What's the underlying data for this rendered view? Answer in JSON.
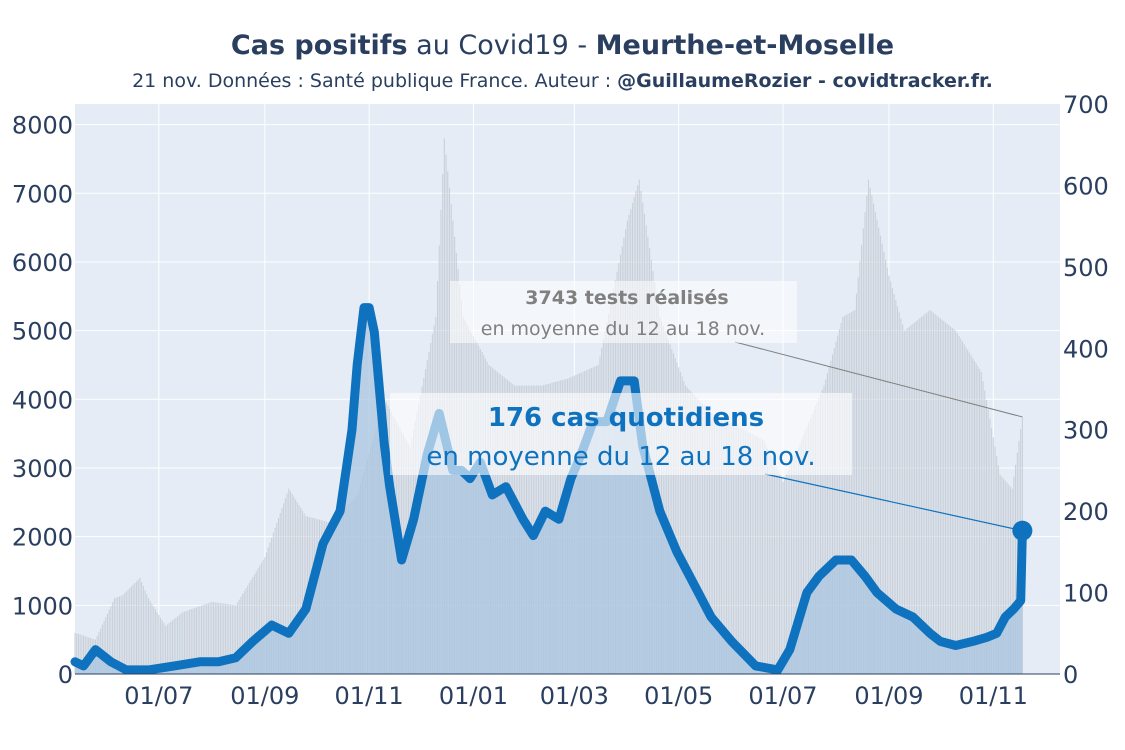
{
  "title": {
    "part1": "Cas positifs",
    "part2": " au Covid19 - ",
    "part3": "Meurthe-et-Moselle"
  },
  "subtitle": {
    "part1": "21 nov. Données : Santé publique France. Auteur : ",
    "part2": "@GuillaumeRozier - covidtracker.fr."
  },
  "colors": {
    "cases_line": "#0f72bf",
    "cases_area": "#a9c6e0",
    "tests_bars": "#c4cbd4",
    "plot_bg": "#e5ecf6",
    "gridline": "#ffffff",
    "text": "#2a3f5f",
    "annotation_tests": "#808080"
  },
  "annotations": {
    "tests_value": "3743 tests réalisés",
    "tests_period": "en moyenne du 12 au 18 nov.",
    "cases_value": "176 cas quotidiens",
    "cases_period": "en moyenne du 12 au 18 nov."
  },
  "chart_data": {
    "type": "line",
    "title": "Cas positifs au Covid19 - Meurthe-et-Moselle",
    "x_tick_labels": [
      "01/07",
      "01/09",
      "01/11",
      "01/01",
      "01/03",
      "01/05",
      "01/07",
      "01/09",
      "01/11"
    ],
    "x_tick_dates": [
      "2020-07-01",
      "2020-09-01",
      "2020-11-01",
      "2021-01-01",
      "2021-03-01",
      "2021-05-01",
      "2021-07-01",
      "2021-09-01",
      "2021-11-01"
    ],
    "xlim": [
      "2020-05-13",
      "2021-12-10"
    ],
    "y_left": {
      "ticks": [
        0,
        1000,
        2000,
        3000,
        4000,
        5000,
        6000,
        7000,
        8000
      ],
      "range": [
        0,
        8300
      ]
    },
    "y_right": {
      "ticks": [
        0,
        100,
        200,
        300,
        400,
        500,
        600,
        700
      ],
      "range": [
        0,
        700
      ]
    },
    "grid": true,
    "series": [
      {
        "name": "Tests",
        "axis": "left",
        "style": "bars",
        "x": [
          "2020-05-13",
          "2020-05-25",
          "2020-06-05",
          "2020-06-10",
          "2020-06-20",
          "2020-06-25",
          "2020-07-05",
          "2020-07-15",
          "2020-08-01",
          "2020-08-15",
          "2020-09-01",
          "2020-09-15",
          "2020-09-25",
          "2020-10-10",
          "2020-10-25",
          "2020-11-10",
          "2020-11-25",
          "2020-12-10",
          "2020-12-15",
          "2020-12-20",
          "2020-12-26",
          "2021-01-10",
          "2021-01-25",
          "2021-02-10",
          "2021-02-25",
          "2021-03-15",
          "2021-04-01",
          "2021-04-08",
          "2021-04-20",
          "2021-05-05",
          "2021-05-20",
          "2021-06-05",
          "2021-06-20",
          "2021-07-01",
          "2021-07-10",
          "2021-07-25",
          "2021-08-05",
          "2021-08-12",
          "2021-08-20",
          "2021-09-01",
          "2021-09-10",
          "2021-09-25",
          "2021-10-10",
          "2021-10-25",
          "2021-11-05",
          "2021-11-12",
          "2021-11-18"
        ],
        "values": [
          600,
          500,
          1100,
          1150,
          1400,
          1100,
          700,
          900,
          1050,
          1000,
          1700,
          2700,
          2300,
          2200,
          2600,
          4000,
          3300,
          5200,
          7800,
          6600,
          5200,
          4500,
          4200,
          4200,
          4300,
          4500,
          6600,
          7200,
          5200,
          4200,
          3800,
          3600,
          3400,
          2800,
          3300,
          4200,
          5200,
          5300,
          7200,
          5800,
          5000,
          5300,
          5000,
          4400,
          2900,
          2700,
          3743
        ]
      },
      {
        "name": "Cas",
        "axis": "right",
        "style": "line",
        "x": [
          "2020-05-13",
          "2020-05-18",
          "2020-05-25",
          "2020-06-03",
          "2020-06-12",
          "2020-06-25",
          "2020-07-10",
          "2020-07-25",
          "2020-08-05",
          "2020-08-15",
          "2020-08-25",
          "2020-09-05",
          "2020-09-15",
          "2020-09-25",
          "2020-10-05",
          "2020-10-15",
          "2020-10-22",
          "2020-10-25",
          "2020-10-29",
          "2020-11-01",
          "2020-11-04",
          "2020-11-07",
          "2020-11-10",
          "2020-11-13",
          "2020-11-20",
          "2020-11-27",
          "2020-12-05",
          "2020-12-12",
          "2020-12-20",
          "2020-12-25",
          "2020-12-30",
          "2021-01-05",
          "2021-01-12",
          "2021-01-20",
          "2021-01-30",
          "2021-02-05",
          "2021-02-12",
          "2021-02-20",
          "2021-02-27",
          "2021-03-05",
          "2021-03-12",
          "2021-03-20",
          "2021-03-28",
          "2021-04-05",
          "2021-04-10",
          "2021-04-20",
          "2021-04-30",
          "2021-05-10",
          "2021-05-20",
          "2021-06-01",
          "2021-06-15",
          "2021-06-28",
          "2021-07-05",
          "2021-07-15",
          "2021-07-22",
          "2021-08-01",
          "2021-08-10",
          "2021-08-18",
          "2021-08-25",
          "2021-09-05",
          "2021-09-15",
          "2021-09-25",
          "2021-10-01",
          "2021-10-10",
          "2021-10-20",
          "2021-10-28",
          "2021-11-03",
          "2021-11-08",
          "2021-11-13",
          "2021-11-17",
          "2021-11-18"
        ],
        "values": [
          15,
          10,
          30,
          15,
          5,
          5,
          10,
          15,
          15,
          20,
          40,
          60,
          50,
          80,
          160,
          200,
          300,
          380,
          450,
          450,
          420,
          350,
          280,
          230,
          140,
          190,
          270,
          320,
          250,
          250,
          240,
          260,
          220,
          230,
          190,
          170,
          200,
          190,
          240,
          270,
          310,
          310,
          360,
          360,
          280,
          200,
          150,
          110,
          70,
          40,
          10,
          5,
          30,
          100,
          120,
          140,
          140,
          120,
          100,
          80,
          70,
          50,
          40,
          35,
          40,
          45,
          50,
          70,
          80,
          90,
          176
        ]
      }
    ]
  }
}
